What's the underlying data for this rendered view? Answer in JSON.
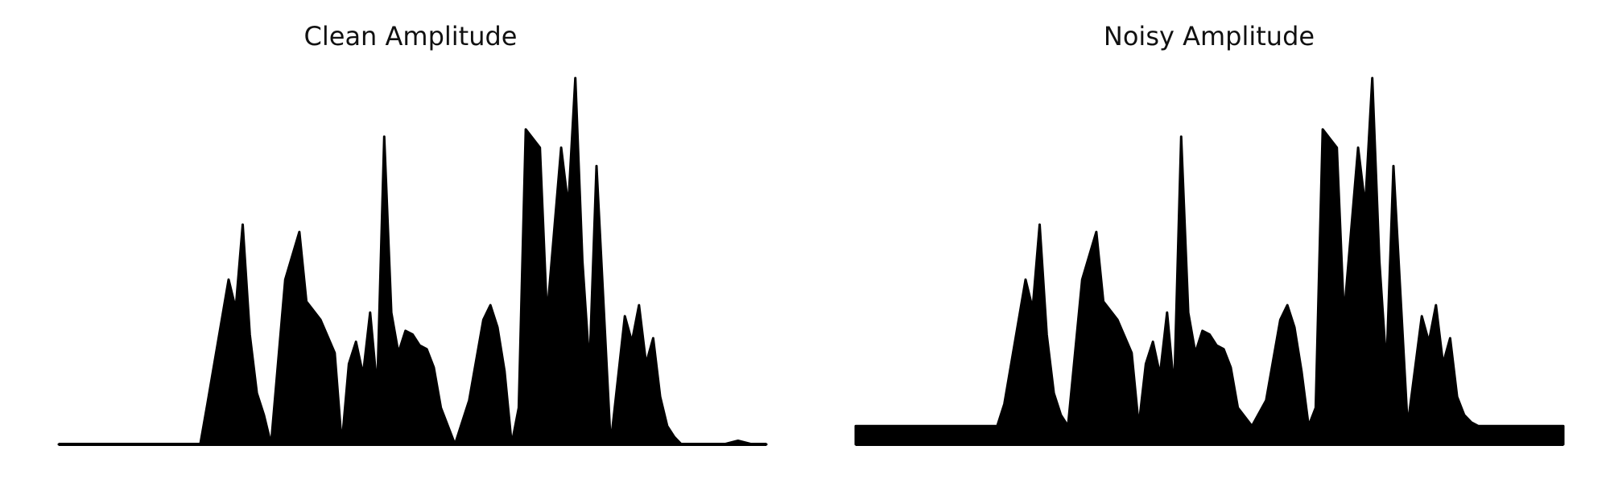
{
  "chart_data": [
    {
      "type": "area",
      "title": "Clean Amplitude",
      "xlabel": "",
      "ylabel": "",
      "grid": false,
      "axes_visible": false,
      "color": "#000000",
      "x": [
        0,
        20,
        21,
        24,
        25,
        26,
        27,
        28,
        29,
        30,
        32,
        34,
        35,
        37,
        39,
        40,
        41,
        42,
        43,
        44,
        45,
        46,
        47,
        48,
        49,
        50,
        51,
        52,
        53,
        54,
        56,
        58,
        60,
        61,
        62,
        63,
        64,
        65,
        66,
        68,
        69,
        70,
        71,
        72,
        73,
        74,
        75,
        76,
        78,
        80,
        81,
        82,
        83,
        84,
        85,
        86,
        87,
        88,
        89,
        90,
        92,
        94,
        96,
        98,
        100
      ],
      "values": [
        0,
        0,
        0.11,
        0.45,
        0.37,
        0.6,
        0.3,
        0.14,
        0.08,
        0,
        0.45,
        0.58,
        0.39,
        0.34,
        0.25,
        0.0,
        0.22,
        0.28,
        0.19,
        0.36,
        0.15,
        0.84,
        0.36,
        0.25,
        0.31,
        0.3,
        0.27,
        0.26,
        0.21,
        0.1,
        0.0,
        0.12,
        0.34,
        0.38,
        0.32,
        0.2,
        0.0,
        0.1,
        0.86,
        0.81,
        0.35,
        0.58,
        0.81,
        0.65,
        1.0,
        0.5,
        0.21,
        0.76,
        0.0,
        0.35,
        0.28,
        0.38,
        0.22,
        0.29,
        0.13,
        0.05,
        0.02,
        0.0,
        0,
        0,
        0,
        0,
        0.01,
        0,
        0
      ]
    },
    {
      "type": "area",
      "title": "Noisy Amplitude",
      "xlabel": "",
      "ylabel": "",
      "grid": false,
      "axes_visible": false,
      "color": "#000000",
      "x": [
        0,
        20,
        21,
        24,
        25,
        26,
        27,
        28,
        29,
        30,
        32,
        34,
        35,
        37,
        39,
        40,
        41,
        42,
        43,
        44,
        45,
        46,
        47,
        48,
        49,
        50,
        51,
        52,
        53,
        54,
        56,
        58,
        60,
        61,
        62,
        63,
        64,
        65,
        66,
        68,
        69,
        70,
        71,
        72,
        73,
        74,
        75,
        76,
        78,
        80,
        81,
        82,
        83,
        84,
        85,
        86,
        87,
        88,
        89,
        90,
        92,
        94,
        96,
        98,
        100
      ],
      "values": [
        0.05,
        0.05,
        0.11,
        0.45,
        0.37,
        0.6,
        0.3,
        0.14,
        0.08,
        0.05,
        0.45,
        0.58,
        0.39,
        0.34,
        0.25,
        0.05,
        0.22,
        0.28,
        0.19,
        0.36,
        0.15,
        0.84,
        0.36,
        0.25,
        0.31,
        0.3,
        0.27,
        0.26,
        0.21,
        0.1,
        0.05,
        0.12,
        0.34,
        0.38,
        0.32,
        0.2,
        0.05,
        0.1,
        0.86,
        0.81,
        0.35,
        0.58,
        0.81,
        0.65,
        1.0,
        0.5,
        0.21,
        0.76,
        0.05,
        0.35,
        0.28,
        0.38,
        0.22,
        0.29,
        0.13,
        0.08,
        0.06,
        0.05,
        0.05,
        0.05,
        0.05,
        0.05,
        0.05,
        0.05,
        0.05
      ]
    }
  ]
}
